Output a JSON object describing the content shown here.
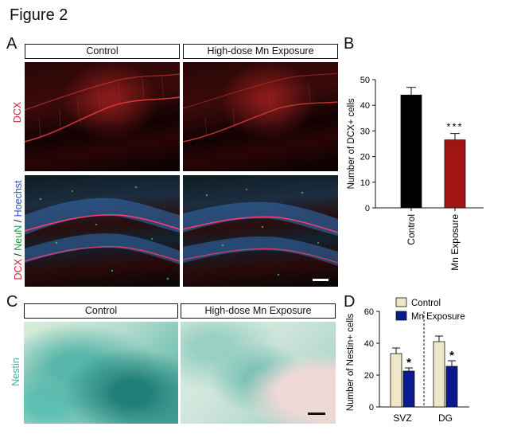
{
  "figure_title": "Figure 2",
  "panels": {
    "a": {
      "letter": "A",
      "control_label": "Control",
      "mn_label": "High-dose Mn Exposure",
      "row1_label": "DCX",
      "row2_label_parts": [
        {
          "text": "DCX",
          "color": "#d0212a"
        },
        {
          "text": " / ",
          "color": "#111111"
        },
        {
          "text": "NeuN",
          "color": "#1a9a3a"
        },
        {
          "text": " / ",
          "color": "#111111"
        },
        {
          "text": "Hoechst",
          "color": "#2a4fb3"
        }
      ]
    },
    "b": {
      "letter": "B"
    },
    "c": {
      "letter": "C",
      "control_label": "Control",
      "mn_label": "High-dose Mn Exposure",
      "row_label": "Nestin"
    },
    "d": {
      "letter": "D"
    }
  },
  "colors": {
    "dcx": "#d0212a",
    "neun": "#1a9a3a",
    "hoechst": "#2a4fb3",
    "nestin": "#2fb4a6",
    "control_bar": "#000000",
    "mn_bar": "#a11414",
    "control_d": "#efe8c8",
    "mn_d": "#0b1a8c"
  },
  "chart_data": [
    {
      "type": "bar",
      "categories": [
        "Control",
        "Mn Exposure"
      ],
      "values": [
        44,
        26.5
      ],
      "errors": [
        3,
        2.5
      ],
      "colors": [
        "#000000",
        "#a11414"
      ],
      "annotations": [
        "",
        "***"
      ],
      "title": "",
      "xlabel": "",
      "ylabel": "Number of DCX+ cells",
      "ylim": [
        0,
        50
      ],
      "yticks": [
        0,
        10,
        20,
        30,
        40,
        50
      ],
      "grid": false
    },
    {
      "type": "bar",
      "categories": [
        "SVZ",
        "DG"
      ],
      "series": [
        {
          "name": "Control",
          "values": [
            33.5,
            41
          ],
          "errors": [
            3.5,
            3.5
          ],
          "color": "#efe8c8"
        },
        {
          "name": "Mn Exposure",
          "values": [
            22.5,
            25.5
          ],
          "errors": [
            2,
            3.5
          ],
          "color": "#0b1a8c"
        }
      ],
      "annotations": [
        "*",
        "*"
      ],
      "title": "",
      "xlabel": "",
      "ylabel": "Number of Nestin+ cells",
      "ylim": [
        0,
        60
      ],
      "yticks": [
        0,
        20,
        40,
        60
      ],
      "legend": "top-right",
      "grid": false
    }
  ]
}
